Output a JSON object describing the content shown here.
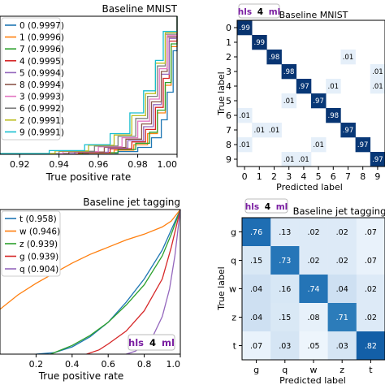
{
  "chart_data": [
    {
      "type": "line",
      "title": "Baseline MNIST",
      "xlabel": "True positive rate",
      "ylabel": "",
      "xlim": [
        0.91,
        1.0
      ],
      "xticks": [
        "0.92",
        "0.94",
        "0.96",
        "0.98",
        "1.00"
      ],
      "xtick_values": [
        0.92,
        0.94,
        0.96,
        0.98,
        1.0
      ],
      "legend_position": "top-left",
      "series": [
        {
          "name": "0 (0.9997)",
          "color": "#1f77b4",
          "x": [
            0.91,
            0.955,
            0.97,
            0.98,
            0.987,
            0.992,
            0.995,
            0.998,
            1.0
          ],
          "y": [
            0.002,
            0.008,
            0.02,
            0.05,
            0.12,
            0.25,
            0.45,
            0.75,
            1.0
          ]
        },
        {
          "name": "1 (0.9996)",
          "color": "#ff7f0e",
          "x": [
            0.91,
            0.95,
            0.968,
            0.978,
            0.985,
            0.99,
            0.994,
            0.997,
            1.0
          ],
          "y": [
            0.002,
            0.01,
            0.03,
            0.07,
            0.15,
            0.3,
            0.5,
            0.78,
            1.0
          ]
        },
        {
          "name": "7 (0.9996)",
          "color": "#2ca02c",
          "x": [
            0.91,
            0.952,
            0.97,
            0.979,
            0.986,
            0.99,
            0.994,
            0.997,
            1.0
          ],
          "y": [
            0.003,
            0.012,
            0.035,
            0.08,
            0.16,
            0.32,
            0.52,
            0.8,
            1.0
          ]
        },
        {
          "name": "4 (0.9995)",
          "color": "#d62728",
          "x": [
            0.91,
            0.95,
            0.966,
            0.977,
            0.984,
            0.989,
            0.993,
            0.996,
            1.0
          ],
          "y": [
            0.003,
            0.013,
            0.04,
            0.09,
            0.18,
            0.34,
            0.55,
            0.82,
            1.0
          ]
        },
        {
          "name": "5 (0.9994)",
          "color": "#9467bd",
          "x": [
            0.91,
            0.948,
            0.965,
            0.975,
            0.983,
            0.988,
            0.992,
            0.996,
            1.0
          ],
          "y": [
            0.004,
            0.015,
            0.045,
            0.1,
            0.2,
            0.36,
            0.58,
            0.84,
            1.0
          ]
        },
        {
          "name": "8 (0.9994)",
          "color": "#8c564b",
          "x": [
            0.91,
            0.945,
            0.963,
            0.974,
            0.982,
            0.987,
            0.992,
            0.995,
            1.0
          ],
          "y": [
            0.004,
            0.017,
            0.05,
            0.11,
            0.22,
            0.38,
            0.6,
            0.85,
            1.0
          ]
        },
        {
          "name": "3 (0.9993)",
          "color": "#e377c2",
          "x": [
            0.91,
            0.942,
            0.96,
            0.972,
            0.98,
            0.986,
            0.991,
            0.995,
            1.0
          ],
          "y": [
            0.005,
            0.02,
            0.055,
            0.12,
            0.24,
            0.4,
            0.62,
            0.86,
            1.0
          ]
        },
        {
          "name": "6 (0.9992)",
          "color": "#7f7f7f",
          "x": [
            0.91,
            0.94,
            0.958,
            0.97,
            0.979,
            0.985,
            0.99,
            0.994,
            1.0
          ],
          "y": [
            0.005,
            0.022,
            0.06,
            0.13,
            0.26,
            0.42,
            0.64,
            0.87,
            1.0
          ]
        },
        {
          "name": "2 (0.9991)",
          "color": "#bcbd22",
          "x": [
            0.91,
            0.938,
            0.955,
            0.968,
            0.977,
            0.984,
            0.989,
            0.994,
            1.0
          ],
          "y": [
            0.006,
            0.025,
            0.065,
            0.14,
            0.28,
            0.44,
            0.66,
            0.88,
            1.0
          ]
        },
        {
          "name": "9 (0.9991)",
          "color": "#17becf",
          "x": [
            0.91,
            0.935,
            0.953,
            0.966,
            0.976,
            0.983,
            0.989,
            0.993,
            1.0
          ],
          "y": [
            0.006,
            0.027,
            0.07,
            0.15,
            0.3,
            0.46,
            0.68,
            0.89,
            1.0
          ]
        }
      ]
    },
    {
      "type": "heatmap",
      "title": "Baseline MNIST",
      "badge": {
        "hls": "hls",
        "four": "4",
        "ml": "ml"
      },
      "xlabel": "Predicted label",
      "ylabel": "True label",
      "labels": [
        "0",
        "1",
        "2",
        "3",
        "4",
        "5",
        "6",
        "7",
        "8",
        "9"
      ],
      "cells": [
        {
          "r": 0,
          "c": 0,
          "v": 0.99,
          "text": ".99"
        },
        {
          "r": 1,
          "c": 1,
          "v": 0.99,
          "text": ".99"
        },
        {
          "r": 2,
          "c": 2,
          "v": 0.98,
          "text": ".98"
        },
        {
          "r": 2,
          "c": 7,
          "v": 0.01,
          "text": ".01"
        },
        {
          "r": 3,
          "c": 3,
          "v": 0.98,
          "text": ".98"
        },
        {
          "r": 3,
          "c": 9,
          "v": 0.01,
          "text": ".01"
        },
        {
          "r": 4,
          "c": 4,
          "v": 0.97,
          "text": ".97"
        },
        {
          "r": 4,
          "c": 6,
          "v": 0.01,
          "text": ".01"
        },
        {
          "r": 4,
          "c": 9,
          "v": 0.01,
          "text": ".01"
        },
        {
          "r": 5,
          "c": 3,
          "v": 0.01,
          "text": ".01"
        },
        {
          "r": 5,
          "c": 5,
          "v": 0.97,
          "text": ".97"
        },
        {
          "r": 6,
          "c": 0,
          "v": 0.01,
          "text": ".01"
        },
        {
          "r": 6,
          "c": 6,
          "v": 0.98,
          "text": ".98"
        },
        {
          "r": 7,
          "c": 1,
          "v": 0.01,
          "text": ".01"
        },
        {
          "r": 7,
          "c": 2,
          "v": 0.01,
          "text": ".01"
        },
        {
          "r": 7,
          "c": 7,
          "v": 0.97,
          "text": ".97"
        },
        {
          "r": 8,
          "c": 0,
          "v": 0.01,
          "text": ".01"
        },
        {
          "r": 8,
          "c": 5,
          "v": 0.01,
          "text": ".01"
        },
        {
          "r": 8,
          "c": 8,
          "v": 0.97,
          "text": ".97"
        },
        {
          "r": 9,
          "c": 3,
          "v": 0.01,
          "text": ".01"
        },
        {
          "r": 9,
          "c": 4,
          "v": 0.01,
          "text": ".01"
        },
        {
          "r": 9,
          "c": 9,
          "v": 0.97,
          "text": ".97"
        }
      ]
    },
    {
      "type": "line",
      "title": "Baseline jet tagging",
      "badge": {
        "hls": "hls",
        "four": "4",
        "ml": "ml"
      },
      "xlabel": "True positive rate",
      "ylabel": "",
      "xlim": [
        0.0,
        1.0
      ],
      "xticks": [
        "0.2",
        "0.4",
        "0.6",
        "0.8",
        "1.0"
      ],
      "xtick_values": [
        0.2,
        0.4,
        0.6,
        0.8,
        1.0
      ],
      "legend_position": "top-left",
      "series": [
        {
          "name": "t (0.958)",
          "color": "#1f77b4",
          "x": [
            0.2,
            0.3,
            0.4,
            0.5,
            0.6,
            0.7,
            0.8,
            0.9,
            0.95,
            1.0
          ],
          "y": [
            0.0,
            0.01,
            0.05,
            0.12,
            0.22,
            0.36,
            0.52,
            0.72,
            0.86,
            1.0
          ]
        },
        {
          "name": "w (0.946)",
          "color": "#ff7f0e",
          "x": [
            0.0,
            0.1,
            0.2,
            0.3,
            0.4,
            0.5,
            0.6,
            0.7,
            0.8,
            0.9,
            0.95,
            1.0
          ],
          "y": [
            0.31,
            0.41,
            0.49,
            0.56,
            0.63,
            0.69,
            0.74,
            0.79,
            0.83,
            0.88,
            0.92,
            1.0
          ]
        },
        {
          "name": "z (0.939)",
          "color": "#2ca02c",
          "x": [
            0.28,
            0.4,
            0.5,
            0.6,
            0.7,
            0.8,
            0.9,
            0.95,
            1.0
          ],
          "y": [
            0.0,
            0.06,
            0.13,
            0.22,
            0.34,
            0.48,
            0.68,
            0.83,
            1.0
          ]
        },
        {
          "name": "g (0.939)",
          "color": "#d62728",
          "x": [
            0.48,
            0.55,
            0.6,
            0.7,
            0.8,
            0.9,
            0.95,
            1.0
          ],
          "y": [
            0.0,
            0.03,
            0.07,
            0.16,
            0.3,
            0.52,
            0.74,
            1.0
          ]
        },
        {
          "name": "q (0.904)",
          "color": "#9467bd",
          "x": [
            0.7,
            0.75,
            0.8,
            0.85,
            0.9,
            0.94,
            0.97,
            1.0
          ],
          "y": [
            0.0,
            0.02,
            0.06,
            0.13,
            0.26,
            0.45,
            0.68,
            1.0
          ]
        }
      ]
    },
    {
      "type": "heatmap",
      "title": "Baseline jet tagging",
      "badge": {
        "hls": "hls",
        "four": "4",
        "ml": "ml"
      },
      "xlabel": "Predicted label",
      "ylabel": "True label",
      "labels": [
        "g",
        "q",
        "w",
        "z",
        "t"
      ],
      "matrix": [
        [
          0.76,
          0.13,
          0.02,
          0.02,
          0.07
        ],
        [
          0.15,
          0.73,
          0.02,
          0.02,
          0.07
        ],
        [
          0.04,
          0.16,
          0.74,
          0.04,
          0.02
        ],
        [
          0.04,
          0.15,
          0.08,
          0.71,
          0.02
        ],
        [
          0.07,
          0.03,
          0.05,
          0.03,
          0.82
        ]
      ],
      "matrix_text": [
        [
          ".76",
          ".13",
          ".02",
          ".02",
          ".07"
        ],
        [
          ".15",
          ".73",
          ".02",
          ".02",
          ".07"
        ],
        [
          ".04",
          ".16",
          ".74",
          ".04",
          ".02"
        ],
        [
          ".04",
          ".15",
          ".08",
          ".71",
          ".02"
        ],
        [
          ".07",
          ".03",
          ".05",
          ".03",
          ".82"
        ]
      ]
    }
  ]
}
